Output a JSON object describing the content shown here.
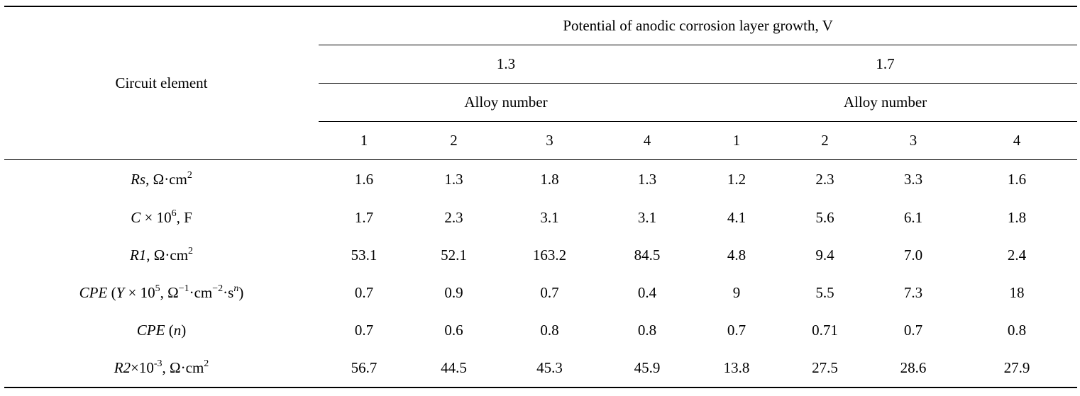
{
  "table": {
    "row_header": "Circuit element",
    "group_header": "Potential of anodic corrosion layer growth, V",
    "potentials": [
      "1.3",
      "1.7"
    ],
    "subgroup_header": "Alloy number",
    "alloys": [
      "1",
      "2",
      "3",
      "4",
      "1",
      "2",
      "3",
      "4"
    ],
    "rows": [
      {
        "label_parts": {
          "sym": "Rs",
          "rest": ", Ω·cm",
          "sup": "2"
        },
        "values": [
          "1.6",
          "1.3",
          "1.8",
          "1.3",
          "1.2",
          "2.3",
          "3.3",
          "1.6"
        ]
      },
      {
        "label_parts": {
          "sym": "C",
          "mid": " × 10",
          "sup": "6",
          "rest": ", F"
        },
        "values": [
          "1.7",
          "2.3",
          "3.1",
          "3.1",
          "4.1",
          "5.6",
          "6.1",
          "1.8"
        ]
      },
      {
        "label_parts": {
          "sym": "R1",
          "rest": ", Ω·cm",
          "sup": "2"
        },
        "values": [
          "53.1",
          "52.1",
          "163.2",
          "84.5",
          "4.8",
          "9.4",
          "7.0",
          "2.4"
        ]
      },
      {
        "label_parts": {
          "sym": "CPE",
          "a": " (",
          "y": "Y",
          "b": " × 10",
          "sup1": "5",
          "c": ", Ω",
          "sup2": "−1",
          "d": "·cm",
          "sup3": "−2",
          "e": "·s",
          "sup4": "n",
          "f": ")"
        },
        "values": [
          "0.7",
          "0.9",
          "0.7",
          "0.4",
          "9",
          "5.5",
          "7.3",
          "18"
        ]
      },
      {
        "label_parts": {
          "sym": "CPE",
          "a": " (",
          "n": "n",
          "f": ")"
        },
        "values": [
          "0.7",
          "0.6",
          "0.8",
          "0.8",
          "0.7",
          "0.71",
          "0.7",
          "0.8"
        ]
      },
      {
        "label_parts": {
          "sym": "R2",
          "mid": "×10",
          "sup": "-3",
          "rest": ", Ω·cm",
          "sup2": "2"
        },
        "values": [
          "56.7",
          "44.5",
          "45.3",
          "45.9",
          "13.8",
          "27.5",
          "28.6",
          "27.9"
        ]
      }
    ]
  }
}
